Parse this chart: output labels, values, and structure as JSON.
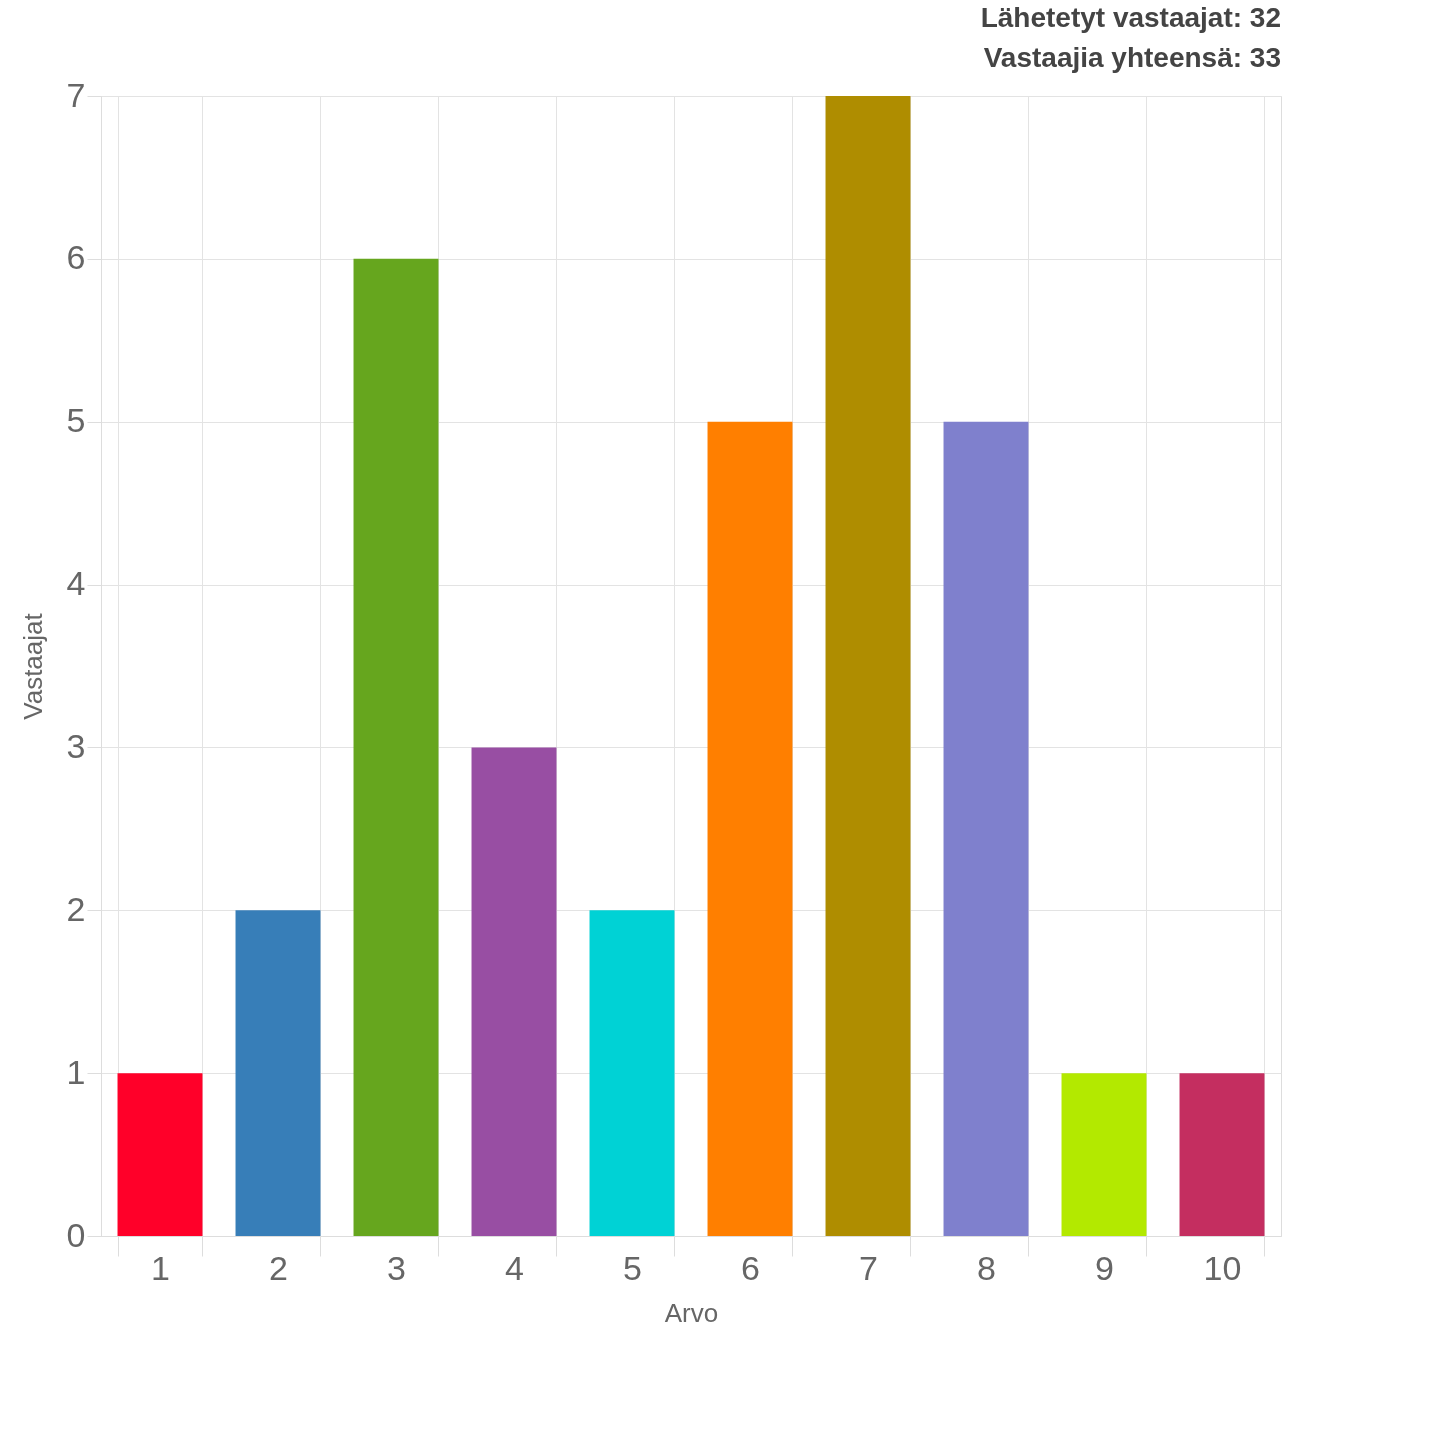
{
  "chart_data": {
    "type": "bar",
    "xlabel": "Arvo",
    "ylabel": "Vastaajat",
    "annotations": [
      "Lähetetyt vastaajat: 32",
      "Vastaajia yhteensä: 33"
    ],
    "categories": [
      "1",
      "2",
      "3",
      "4",
      "5",
      "6",
      "7",
      "8",
      "9",
      "10"
    ],
    "values": [
      1,
      2,
      6,
      3,
      2,
      5,
      7,
      5,
      1,
      1
    ],
    "colors": [
      "#ff0029",
      "#377eb8",
      "#66a61e",
      "#984ea3",
      "#00d2d5",
      "#ff7f00",
      "#af8d00",
      "#7f80cd",
      "#b3e900",
      "#c42e60"
    ],
    "ylim": [
      0,
      7
    ],
    "yticks": [
      0,
      1,
      2,
      3,
      4,
      5,
      6,
      7
    ],
    "grid": true
  }
}
